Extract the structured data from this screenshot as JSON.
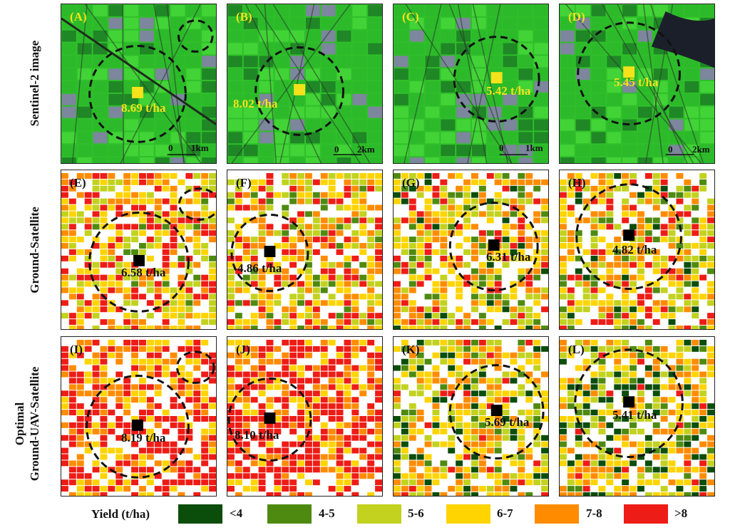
{
  "row_labels": {
    "row1": "Sentinel-2 image",
    "row2": "Ground-Satellite",
    "row3_line1": "Optimal",
    "row3_line2": "Ground-UAV-Satellite"
  },
  "panels": {
    "A": {
      "label": "(A)",
      "yield": "8.69 t/ha",
      "scale_zero": "0",
      "scale_end": "1km"
    },
    "B": {
      "label": "(B)",
      "yield": "8.02 t/ha",
      "scale_zero": "0",
      "scale_end": "2km"
    },
    "C": {
      "label": "(C)",
      "yield": "5.42 t/ha",
      "scale_zero": "0",
      "scale_end": "1km"
    },
    "D": {
      "label": "(D)",
      "yield": "5.45 t/ha",
      "scale_zero": "0",
      "scale_end": "2km"
    },
    "E": {
      "label": "(E)",
      "yield": "6.58 t/ha"
    },
    "F": {
      "label": "(F)",
      "yield": "4.86 t/ha"
    },
    "G": {
      "label": "(G)",
      "yield": "6.31 t/ha"
    },
    "H": {
      "label": "(H)",
      "yield": "4.82 t/ha"
    },
    "I": {
      "label": "(I)",
      "yield": "8.19 t/ha"
    },
    "J": {
      "label": "(J)",
      "yield": "8.10 t/ha"
    },
    "K": {
      "label": "(K)",
      "yield": "5.69 t/ha"
    },
    "L": {
      "label": "(L)",
      "yield": "5.41 t/ha"
    }
  },
  "legend": {
    "title": "Yield (t/ha)",
    "items": [
      {
        "label": "<4",
        "color": "#0b4d0b"
      },
      {
        "label": "4-5",
        "color": "#4f8a10"
      },
      {
        "label": "5-6",
        "color": "#c2d21f"
      },
      {
        "label": "6-7",
        "color": "#ffd400"
      },
      {
        "label": "7-8",
        "color": "#ff8c00"
      },
      {
        "label": ">8",
        "color": "#ee1c16"
      }
    ]
  },
  "colors": {
    "satellite_green": "#2fbf2a",
    "satellite_dark": "#1c7d24",
    "marker_yellow": "#f5e21a",
    "marker_black": "#000000"
  }
}
